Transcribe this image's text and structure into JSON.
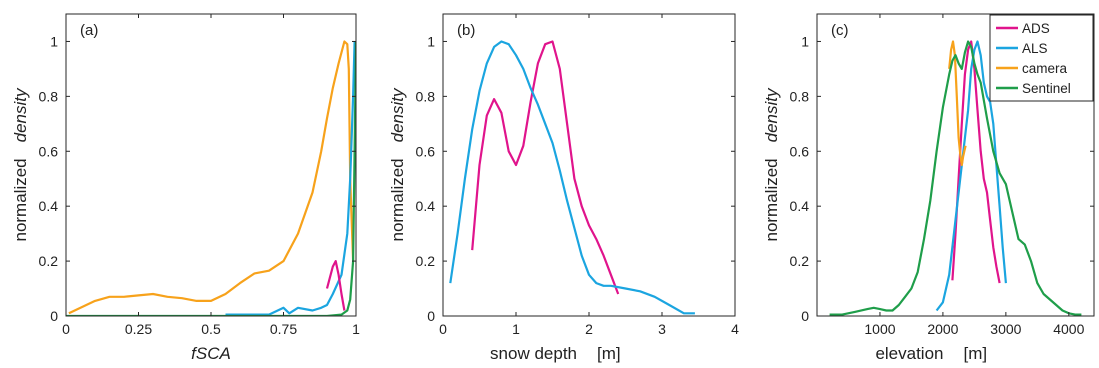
{
  "chart_data": [
    {
      "type": "line",
      "panel_label": "(a)",
      "xlabel": "fSCA",
      "ylabel_parts": [
        "normalized",
        "density"
      ],
      "xlim": [
        0,
        1
      ],
      "ylim": [
        0,
        1.1
      ],
      "xticks": [
        0,
        0.25,
        0.5,
        0.75,
        1
      ],
      "xtick_labels": [
        "0",
        "0.25",
        "0.5",
        "0.75",
        "1"
      ],
      "yticks": [
        0,
        0.2,
        0.4,
        0.6,
        0.8,
        1
      ],
      "ytick_labels": [
        "0",
        "0.2",
        "0.4",
        "0.6",
        "0.8",
        "1"
      ],
      "grid": false,
      "series": [
        {
          "color": "#f7a21b",
          "x": [
            0.01,
            0.05,
            0.1,
            0.15,
            0.2,
            0.25,
            0.3,
            0.35,
            0.4,
            0.45,
            0.5,
            0.55,
            0.6,
            0.65,
            0.7,
            0.75,
            0.8,
            0.85,
            0.88,
            0.9,
            0.92,
            0.94,
            0.96,
            0.97,
            0.975,
            0.98,
            0.99
          ],
          "y": [
            0.01,
            0.03,
            0.055,
            0.07,
            0.07,
            0.075,
            0.08,
            0.07,
            0.065,
            0.055,
            0.055,
            0.08,
            0.12,
            0.155,
            0.165,
            0.2,
            0.3,
            0.45,
            0.6,
            0.72,
            0.83,
            0.92,
            1.0,
            0.99,
            0.9,
            0.5,
            0.2
          ]
        },
        {
          "color": "#1ba5e0",
          "x": [
            0.55,
            0.6,
            0.65,
            0.7,
            0.75,
            0.77,
            0.8,
            0.85,
            0.88,
            0.9,
            0.92,
            0.95,
            0.97,
            0.98,
            0.99,
            0.995
          ],
          "y": [
            0.005,
            0.005,
            0.005,
            0.005,
            0.03,
            0.01,
            0.03,
            0.02,
            0.03,
            0.04,
            0.08,
            0.15,
            0.3,
            0.5,
            0.8,
            1.0
          ]
        },
        {
          "color": "#e0148c",
          "x": [
            0.9,
            0.92,
            0.93,
            0.94,
            0.95,
            0.96
          ],
          "y": [
            0.1,
            0.18,
            0.2,
            0.15,
            0.08,
            0.02
          ]
        },
        {
          "color": "#1f9e4a",
          "x": [
            0,
            0.3,
            0.6,
            0.8,
            0.9,
            0.95,
            0.97,
            0.98,
            0.99,
            0.995,
            1.0
          ],
          "y": [
            0,
            0,
            0,
            0,
            0,
            0.005,
            0.02,
            0.06,
            0.2,
            0.6,
            1.0
          ]
        }
      ]
    },
    {
      "type": "line",
      "panel_label": "(b)",
      "xlabel": "snow depth",
      "xlabel_unit": "[m]",
      "ylabel_parts": [
        "normalized",
        "density"
      ],
      "xlim": [
        0,
        4
      ],
      "ylim": [
        0,
        1.1
      ],
      "xticks": [
        0,
        1,
        2,
        3,
        4
      ],
      "xtick_labels": [
        "0",
        "1",
        "2",
        "3",
        "4"
      ],
      "yticks": [
        0,
        0.2,
        0.4,
        0.6,
        0.8,
        1
      ],
      "ytick_labels": [
        "0",
        "0.2",
        "0.4",
        "0.6",
        "0.8",
        "1"
      ],
      "grid": false,
      "series": [
        {
          "color": "#e0148c",
          "x": [
            0.4,
            0.5,
            0.6,
            0.7,
            0.8,
            0.9,
            1.0,
            1.1,
            1.2,
            1.3,
            1.4,
            1.5,
            1.6,
            1.7,
            1.8,
            1.9,
            2.0,
            2.1,
            2.2,
            2.3,
            2.4
          ],
          "y": [
            0.24,
            0.55,
            0.73,
            0.79,
            0.74,
            0.6,
            0.55,
            0.62,
            0.78,
            0.92,
            0.99,
            1.0,
            0.9,
            0.7,
            0.5,
            0.4,
            0.33,
            0.28,
            0.22,
            0.15,
            0.08
          ]
        },
        {
          "color": "#1ba5e0",
          "x": [
            0.1,
            0.2,
            0.3,
            0.4,
            0.5,
            0.6,
            0.7,
            0.8,
            0.9,
            1.0,
            1.1,
            1.2,
            1.3,
            1.4,
            1.5,
            1.6,
            1.7,
            1.8,
            1.9,
            2.0,
            2.1,
            2.2,
            2.3,
            2.5,
            2.7,
            2.9,
            3.1,
            3.3,
            3.45
          ],
          "y": [
            0.12,
            0.3,
            0.5,
            0.68,
            0.82,
            0.92,
            0.98,
            1.0,
            0.99,
            0.95,
            0.9,
            0.83,
            0.77,
            0.7,
            0.63,
            0.53,
            0.42,
            0.32,
            0.22,
            0.15,
            0.12,
            0.11,
            0.11,
            0.1,
            0.09,
            0.07,
            0.04,
            0.01,
            0.01
          ]
        }
      ]
    },
    {
      "type": "line",
      "panel_label": "(c)",
      "xlabel": "elevation",
      "xlabel_unit": "[m]",
      "ylabel_parts": [
        "normalized",
        "density"
      ],
      "xlim": [
        0,
        4400
      ],
      "ylim": [
        0,
        1.1
      ],
      "xticks": [
        1000,
        2000,
        3000,
        4000
      ],
      "xtick_labels": [
        "1000",
        "2000",
        "3000",
        "4000"
      ],
      "yticks": [
        0,
        0.2,
        0.4,
        0.6,
        0.8,
        1
      ],
      "ytick_labels": [
        "0",
        "0.2",
        "0.4",
        "0.6",
        "0.8",
        "1"
      ],
      "grid": false,
      "legend_position": "top-right",
      "series": [
        {
          "name": "ADS",
          "color": "#e0148c",
          "x": [
            2150,
            2200,
            2250,
            2300,
            2350,
            2400,
            2450,
            2500,
            2550,
            2600,
            2650,
            2700,
            2750,
            2800,
            2850,
            2900
          ],
          "y": [
            0.13,
            0.3,
            0.5,
            0.7,
            0.88,
            0.97,
            1.0,
            0.9,
            0.75,
            0.6,
            0.5,
            0.45,
            0.35,
            0.25,
            0.18,
            0.12
          ]
        },
        {
          "name": "ALS",
          "color": "#1ba5e0",
          "x": [
            1900,
            2000,
            2100,
            2200,
            2300,
            2400,
            2450,
            2500,
            2550,
            2600,
            2650,
            2700,
            2750,
            2800,
            2850,
            2900,
            2950,
            3000
          ],
          "y": [
            0.02,
            0.05,
            0.15,
            0.35,
            0.55,
            0.75,
            0.9,
            0.97,
            1.0,
            0.95,
            0.85,
            0.8,
            0.78,
            0.7,
            0.55,
            0.4,
            0.25,
            0.12
          ]
        },
        {
          "name": "camera",
          "color": "#f7a21b",
          "x": [
            2100,
            2130,
            2160,
            2190,
            2220,
            2250,
            2280,
            2300,
            2320,
            2340,
            2360
          ],
          "y": [
            0.9,
            0.97,
            1.0,
            0.95,
            0.8,
            0.65,
            0.58,
            0.55,
            0.58,
            0.6,
            0.62
          ]
        },
        {
          "name": "Sentinel",
          "color": "#1f9e4a",
          "x": [
            200,
            400,
            600,
            800,
            900,
            1000,
            1100,
            1200,
            1300,
            1400,
            1500,
            1600,
            1700,
            1800,
            1900,
            2000,
            2100,
            2150,
            2200,
            2250,
            2300,
            2350,
            2400,
            2450,
            2500,
            2550,
            2600,
            2700,
            2800,
            2900,
            3000,
            3100,
            3200,
            3300,
            3400,
            3500,
            3600,
            3700,
            3800,
            3900,
            4000,
            4100,
            4200
          ],
          "y": [
            0.005,
            0.005,
            0.015,
            0.025,
            0.03,
            0.025,
            0.02,
            0.02,
            0.04,
            0.07,
            0.1,
            0.16,
            0.28,
            0.42,
            0.6,
            0.76,
            0.88,
            0.93,
            0.95,
            0.92,
            0.9,
            0.96,
            1.0,
            0.98,
            0.92,
            0.88,
            0.85,
            0.72,
            0.6,
            0.52,
            0.48,
            0.38,
            0.28,
            0.26,
            0.2,
            0.12,
            0.08,
            0.06,
            0.04,
            0.02,
            0.01,
            0.005,
            0.005
          ]
        }
      ]
    }
  ]
}
